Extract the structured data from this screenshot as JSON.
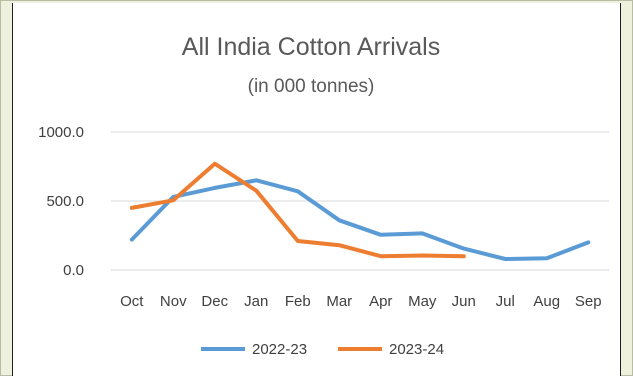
{
  "chart_data": {
    "type": "line",
    "title": "All India Cotton Arrivals",
    "subtitle": "(in 000 tonnes)",
    "xlabel": "",
    "ylabel": "",
    "categories": [
      "Oct",
      "Nov",
      "Dec",
      "Jan",
      "Feb",
      "Mar",
      "Apr",
      "May",
      "Jun",
      "Jul",
      "Aug",
      "Sep"
    ],
    "y_ticks": [
      "1000.0",
      "500.0",
      "0.0"
    ],
    "y_tick_values": [
      1000,
      500,
      0
    ],
    "ylim": [
      0,
      1000
    ],
    "grid": true,
    "legend_position": "bottom",
    "series": [
      {
        "name": "2022-23",
        "color": "#5b9bd5",
        "values": [
          220,
          530,
          595,
          650,
          570,
          360,
          255,
          265,
          155,
          80,
          85,
          200
        ]
      },
      {
        "name": "2023-24",
        "color": "#ed7d31",
        "values": [
          450,
          505,
          770,
          575,
          210,
          180,
          100,
          105,
          100,
          null,
          null,
          null
        ]
      }
    ]
  }
}
